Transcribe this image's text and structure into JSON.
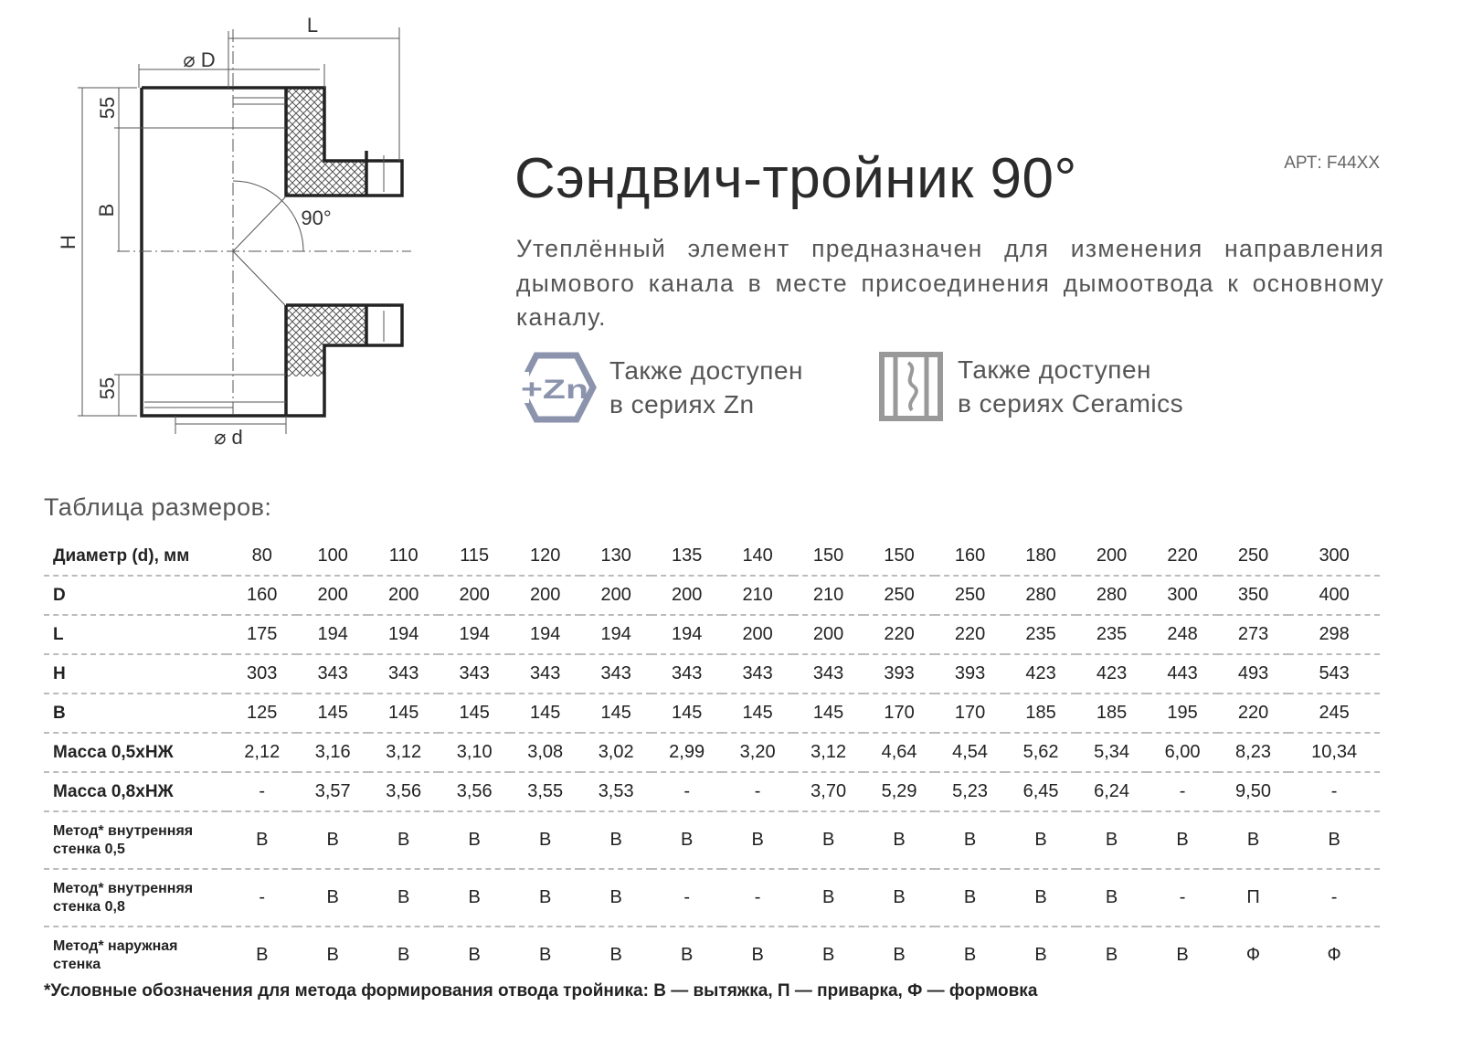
{
  "article": "АРТ: F44XX",
  "title": "Сэндвич-тройник 90°",
  "description": "Утеплённый элемент предназначен для изменения направления дымового канала в месте присоединения дымоотвода к основному каналу.",
  "diagram": {
    "L": "L",
    "D": "⌀ D",
    "d": "⌀ d",
    "H": "H",
    "B": "B",
    "top55": "55",
    "bottom55": "55",
    "angle": "90°"
  },
  "series": [
    {
      "icon": "zinc-hexagon-icon",
      "badge": "+Zn",
      "line1": "Также доступен",
      "line2": "в сериях Zn",
      "color": "#8b93ad"
    },
    {
      "icon": "ceramics-icon",
      "line1": "Также доступен",
      "line2": "в сериях Ceramics",
      "color": "#999999"
    }
  ],
  "table_title": "Таблица размеров:",
  "table": {
    "rows": [
      {
        "label": "Диаметр (d), мм",
        "values": [
          "80",
          "100",
          "110",
          "115",
          "120",
          "130",
          "135",
          "140",
          "150",
          "150",
          "160",
          "180",
          "200",
          "220",
          "250",
          "300"
        ]
      },
      {
        "label": "D",
        "values": [
          "160",
          "200",
          "200",
          "200",
          "200",
          "200",
          "200",
          "210",
          "210",
          "250",
          "250",
          "280",
          "280",
          "300",
          "350",
          "400"
        ]
      },
      {
        "label": "L",
        "values": [
          "175",
          "194",
          "194",
          "194",
          "194",
          "194",
          "194",
          "200",
          "200",
          "220",
          "220",
          "235",
          "235",
          "248",
          "273",
          "298"
        ]
      },
      {
        "label": "H",
        "values": [
          "303",
          "343",
          "343",
          "343",
          "343",
          "343",
          "343",
          "343",
          "343",
          "393",
          "393",
          "423",
          "423",
          "443",
          "493",
          "543"
        ]
      },
      {
        "label": "B",
        "values": [
          "125",
          "145",
          "145",
          "145",
          "145",
          "145",
          "145",
          "145",
          "145",
          "170",
          "170",
          "185",
          "185",
          "195",
          "220",
          "245"
        ]
      },
      {
        "label": "Масса 0,5хНЖ",
        "values": [
          "2,12",
          "3,16",
          "3,12",
          "3,10",
          "3,08",
          "3,02",
          "2,99",
          "3,20",
          "3,12",
          "4,64",
          "4,54",
          "5,62",
          "5,34",
          "6,00",
          "8,23",
          "10,34"
        ]
      },
      {
        "label": "Масса 0,8хНЖ",
        "values": [
          "-",
          "3,57",
          "3,56",
          "3,56",
          "3,55",
          "3,53",
          "-",
          "-",
          "3,70",
          "5,29",
          "5,23",
          "6,45",
          "6,24",
          "-",
          "9,50",
          "-"
        ]
      },
      {
        "label": "Метод* внутренняя стенка 0,5",
        "values": [
          "В",
          "В",
          "В",
          "В",
          "В",
          "В",
          "В",
          "В",
          "В",
          "В",
          "В",
          "В",
          "В",
          "В",
          "В",
          "В"
        ]
      },
      {
        "label": "Метод* внутренняя стенка 0,8",
        "values": [
          "-",
          "В",
          "В",
          "В",
          "В",
          "В",
          "-",
          "-",
          "В",
          "В",
          "В",
          "В",
          "В",
          "-",
          "П",
          "-"
        ]
      },
      {
        "label": "Метод* наружная стенка",
        "values": [
          "В",
          "В",
          "В",
          "В",
          "В",
          "В",
          "В",
          "В",
          "В",
          "В",
          "В",
          "В",
          "В",
          "В",
          "Ф",
          "Ф"
        ]
      }
    ]
  },
  "footnote": "*Условные обозначения для метода формирования отвода тройника: В — вытяжка, П — приварка, Ф — формовка"
}
